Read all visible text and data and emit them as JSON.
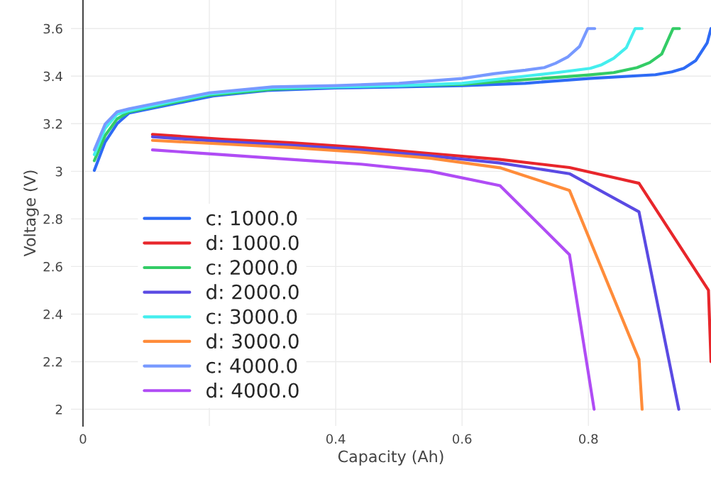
{
  "chart_data": {
    "type": "line",
    "xlabel": "Capacity (Ah)",
    "ylabel": "Voltage (V)",
    "xlim": [
      -0.019,
      0.994
    ],
    "ylim": [
      1.93,
      3.72
    ],
    "xticks": [
      0,
      {
        "value": 0.2,
        "label": null
      },
      0.4,
      0.6,
      0.8
    ],
    "yticks": [
      2,
      2.2,
      2.4,
      2.6,
      2.8,
      3,
      3.2,
      3.4,
      3.6
    ],
    "grid": true,
    "legend": "bottom left",
    "marker": "none",
    "line_style": "solid",
    "series": [
      {
        "name": "c: 1000.0",
        "color": "#2e6bf5",
        "x": [
          0.018,
          0.035,
          0.054,
          0.073,
          0.206,
          0.292,
          0.4,
          0.5,
          0.6,
          0.7,
          0.8,
          0.906,
          0.932,
          0.951,
          0.97,
          0.988,
          0.994
        ],
        "values": [
          3.004,
          3.123,
          3.2,
          3.245,
          3.317,
          3.34,
          3.35,
          3.355,
          3.36,
          3.37,
          3.39,
          3.406,
          3.418,
          3.433,
          3.466,
          3.54,
          3.6
        ]
      },
      {
        "name": "d: 1000.0",
        "color": "#e8262b",
        "x": [
          0.11,
          0.22,
          0.33,
          0.44,
          0.55,
          0.66,
          0.77,
          0.88,
          0.99,
          0.994
        ],
        "values": [
          3.155,
          3.135,
          3.12,
          3.1,
          3.075,
          3.05,
          3.016,
          2.95,
          2.5,
          2.2
        ]
      },
      {
        "name": "c: 2000.0",
        "color": "#33cc66",
        "x": [
          0.018,
          0.035,
          0.054,
          0.073,
          0.2,
          0.3,
          0.4,
          0.5,
          0.6,
          0.7,
          0.8,
          0.84,
          0.877,
          0.897,
          0.916,
          0.934,
          0.944
        ],
        "values": [
          3.045,
          3.15,
          3.22,
          3.25,
          3.32,
          3.345,
          3.355,
          3.36,
          3.365,
          3.385,
          3.405,
          3.415,
          3.436,
          3.457,
          3.493,
          3.6,
          3.6
        ]
      },
      {
        "name": "d: 2000.0",
        "color": "#5a4ae3",
        "x": [
          0.11,
          0.22,
          0.33,
          0.44,
          0.55,
          0.66,
          0.77,
          0.88,
          0.943
        ],
        "values": [
          3.145,
          3.125,
          3.11,
          3.09,
          3.065,
          3.035,
          2.99,
          2.83,
          2.0
        ]
      },
      {
        "name": "c: 3000.0",
        "color": "#44eeee",
        "x": [
          0.018,
          0.035,
          0.054,
          0.073,
          0.2,
          0.3,
          0.4,
          0.5,
          0.6,
          0.7,
          0.75,
          0.803,
          0.821,
          0.84,
          0.86,
          0.874,
          0.885
        ],
        "values": [
          3.07,
          3.18,
          3.24,
          3.255,
          3.325,
          3.35,
          3.355,
          3.36,
          3.37,
          3.4,
          3.415,
          3.433,
          3.448,
          3.475,
          3.52,
          3.6,
          3.6
        ]
      },
      {
        "name": "d: 3000.0",
        "color": "#ff8c3a",
        "x": [
          0.11,
          0.22,
          0.33,
          0.44,
          0.55,
          0.66,
          0.77,
          0.88,
          0.885
        ],
        "values": [
          3.13,
          3.115,
          3.1,
          3.08,
          3.055,
          3.015,
          2.92,
          2.21,
          2.0
        ]
      },
      {
        "name": "c: 4000.0",
        "color": "#7799ff",
        "x": [
          0.018,
          0.035,
          0.054,
          0.073,
          0.2,
          0.3,
          0.4,
          0.5,
          0.6,
          0.65,
          0.7,
          0.73,
          0.748,
          0.767,
          0.786,
          0.799,
          0.81
        ],
        "values": [
          3.09,
          3.198,
          3.25,
          3.263,
          3.33,
          3.355,
          3.36,
          3.37,
          3.39,
          3.41,
          3.425,
          3.436,
          3.454,
          3.48,
          3.525,
          3.6,
          3.6
        ]
      },
      {
        "name": "d: 4000.0",
        "color": "#b04cf5",
        "x": [
          0.11,
          0.22,
          0.33,
          0.44,
          0.55,
          0.66,
          0.77,
          0.809
        ],
        "values": [
          3.09,
          3.07,
          3.05,
          3.03,
          3.0,
          2.94,
          2.65,
          2.0
        ]
      }
    ]
  }
}
